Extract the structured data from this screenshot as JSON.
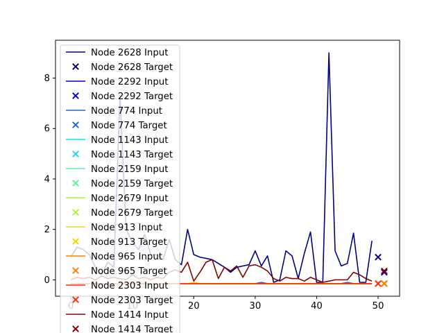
{
  "chart_data": {
    "type": "line",
    "title": "",
    "xlabel": "",
    "ylabel": "",
    "xlim": [
      -2.5,
      53.5
    ],
    "ylim": [
      -0.65,
      9.5
    ],
    "xticks": [
      0,
      10,
      20,
      30,
      40,
      50
    ],
    "yticks": [
      0,
      2,
      4,
      6,
      8
    ],
    "legend_position": "upper-left",
    "series": [
      {
        "name_input": "Node 2628 Input",
        "name_target": "Node 2628 Target",
        "color": "#000080",
        "values": [
          0.9,
          1.3,
          1.2,
          1.0,
          0.5,
          0.2,
          0.7,
          0.5,
          7.3,
          2.0,
          1.5,
          1.2,
          1.8,
          1.0,
          1.0,
          0.8,
          1.6,
          0.8,
          0.6,
          2.0,
          1.0,
          0.9,
          0.85,
          0.8,
          0.65,
          0.5,
          0.3,
          0.5,
          0.55,
          0.6,
          1.15,
          0.55,
          0.95,
          -0.1,
          0.0,
          1.15,
          0.95,
          0.05,
          1.05,
          1.9,
          -0.1,
          -0.1,
          9.0,
          1.15,
          0.55,
          0.65,
          1.85,
          -0.1,
          -0.1,
          1.55
        ],
        "target": [
          50,
          0.9
        ]
      },
      {
        "name_input": "Node 2292 Input",
        "name_target": "Node 2292 Target",
        "color": "#0000cd",
        "values": [
          -0.15,
          -0.15,
          -0.15,
          -0.15,
          -0.15,
          -0.15,
          -0.15,
          -0.15,
          -0.15,
          -0.15,
          -0.15,
          -0.15,
          -0.15,
          -0.15,
          -0.15,
          -0.15,
          -0.15,
          -0.15,
          -0.15,
          -0.15,
          -0.15,
          -0.15,
          -0.15,
          -0.15,
          -0.15,
          -0.15,
          -0.15,
          -0.15,
          -0.15,
          -0.15,
          -0.15,
          -0.15,
          -0.15,
          -0.15,
          -0.15,
          -0.15,
          -0.15,
          -0.15,
          -0.15,
          -0.15,
          -0.15,
          -0.15,
          -0.15,
          -0.15,
          -0.15,
          -0.15,
          -0.15,
          -0.15,
          -0.15,
          -0.15
        ],
        "target": [
          51,
          0.3
        ]
      },
      {
        "name_input": "Node 774 Input",
        "name_target": "Node 774 Target",
        "color": "#1a66e6",
        "values": [
          -0.15,
          -0.15,
          -0.15,
          -0.15,
          -0.15,
          -0.15,
          -0.15,
          -0.15,
          -0.15,
          -0.15,
          -0.15,
          -0.15,
          -0.15,
          -0.15,
          -0.15,
          -0.15,
          -0.15,
          -0.15,
          -0.15,
          -0.15,
          -0.15,
          -0.15,
          -0.15,
          -0.15,
          -0.15,
          -0.15,
          -0.15,
          -0.15,
          -0.15,
          -0.15,
          -0.15,
          -0.1,
          -0.15,
          -0.15,
          -0.15,
          -0.15,
          -0.15,
          -0.15,
          -0.15,
          -0.15,
          -0.15,
          -0.15,
          -0.15,
          -0.15,
          -0.15,
          -0.1,
          -0.15,
          -0.15,
          -0.15,
          -0.15
        ],
        "target": [
          51,
          -0.15
        ]
      },
      {
        "name_input": "Node 1143 Input",
        "name_target": "Node 1143 Target",
        "color": "#1ad6f0",
        "values": [
          -0.15,
          -0.15,
          -0.15,
          -0.15,
          -0.15,
          -0.15,
          -0.15,
          -0.15,
          -0.15,
          -0.15,
          -0.15,
          -0.15,
          -0.15,
          -0.15,
          -0.15,
          -0.15,
          -0.15,
          -0.15,
          -0.15,
          -0.15,
          -0.15,
          -0.15,
          -0.15,
          -0.15,
          -0.15,
          -0.15,
          -0.15,
          -0.15,
          -0.15,
          -0.15,
          -0.15,
          -0.15,
          -0.15,
          -0.15,
          -0.15,
          -0.15,
          -0.15,
          -0.15,
          -0.15,
          -0.15,
          -0.15,
          -0.15,
          -0.15,
          -0.15,
          -0.15,
          -0.15,
          -0.15,
          -0.15,
          -0.15,
          -0.15
        ],
        "target": [
          51,
          -0.15
        ]
      },
      {
        "name_input": "Node 2159 Input",
        "name_target": "Node 2159 Target",
        "color": "#5cf5a8",
        "values": [
          -0.15,
          -0.15,
          -0.15,
          -0.15,
          -0.15,
          -0.15,
          -0.15,
          -0.15,
          -0.15,
          -0.15,
          -0.15,
          -0.15,
          -0.15,
          -0.15,
          -0.15,
          -0.15,
          -0.15,
          -0.15,
          -0.15,
          -0.15,
          -0.15,
          -0.15,
          -0.15,
          -0.15,
          -0.15,
          -0.15,
          -0.15,
          -0.15,
          -0.15,
          -0.15,
          -0.15,
          -0.15,
          -0.15,
          -0.15,
          -0.15,
          -0.15,
          -0.15,
          -0.15,
          -0.15,
          -0.15,
          -0.15,
          -0.15,
          -0.15,
          -0.15,
          -0.15,
          -0.15,
          -0.15,
          -0.15,
          -0.15,
          -0.15
        ],
        "target": [
          51,
          -0.15
        ]
      },
      {
        "name_input": "Node 2679 Input",
        "name_target": "Node 2679 Target",
        "color": "#a8f53d",
        "values": [
          -0.15,
          -0.15,
          -0.15,
          -0.15,
          -0.15,
          -0.15,
          -0.15,
          -0.15,
          -0.15,
          -0.15,
          -0.15,
          -0.15,
          -0.15,
          -0.15,
          -0.15,
          -0.15,
          -0.15,
          -0.15,
          -0.15,
          -0.15,
          -0.15,
          -0.15,
          -0.15,
          -0.15,
          -0.15,
          -0.15,
          -0.15,
          -0.15,
          -0.15,
          -0.15,
          -0.15,
          -0.15,
          -0.15,
          -0.15,
          -0.15,
          -0.15,
          -0.15,
          -0.15,
          -0.15,
          -0.15,
          -0.15,
          -0.15,
          -0.15,
          -0.15,
          -0.15,
          -0.15,
          -0.15,
          -0.15,
          -0.15,
          -0.15
        ],
        "target": [
          51,
          -0.15
        ]
      },
      {
        "name_input": "Node 913 Input",
        "name_target": "Node 913 Target",
        "color": "#f5d800",
        "values": [
          -0.15,
          -0.15,
          -0.15,
          -0.15,
          -0.15,
          -0.15,
          -0.15,
          -0.15,
          -0.15,
          -0.15,
          -0.15,
          -0.15,
          -0.15,
          -0.15,
          -0.15,
          -0.15,
          -0.15,
          -0.15,
          -0.15,
          -0.15,
          -0.1,
          -0.15,
          -0.15,
          -0.15,
          -0.15,
          -0.15,
          -0.15,
          -0.15,
          -0.15,
          -0.15,
          -0.15,
          -0.15,
          -0.15,
          -0.15,
          -0.15,
          -0.15,
          -0.15,
          -0.15,
          -0.15,
          -0.15,
          -0.15,
          -0.15,
          -0.15,
          -0.15,
          -0.15,
          -0.15,
          -0.15,
          -0.15,
          -0.15,
          -0.15
        ],
        "target": [
          51,
          -0.15
        ]
      },
      {
        "name_input": "Node 965 Input",
        "name_target": "Node 965 Target",
        "color": "#ff8000",
        "values": [
          -0.15,
          -0.15,
          -0.15,
          -0.15,
          -0.15,
          -0.15,
          -0.15,
          -0.15,
          -0.15,
          -0.15,
          -0.15,
          -0.15,
          -0.15,
          -0.15,
          -0.15,
          -0.15,
          -0.15,
          -0.15,
          -0.15,
          -0.15,
          -0.15,
          -0.15,
          -0.15,
          -0.15,
          -0.15,
          -0.15,
          -0.15,
          -0.15,
          -0.15,
          -0.15,
          -0.15,
          -0.15,
          -0.15,
          -0.15,
          -0.15,
          -0.15,
          -0.15,
          -0.15,
          -0.15,
          -0.15,
          -0.15,
          -0.15,
          -0.15,
          -0.15,
          -0.15,
          -0.15,
          -0.15,
          -0.15,
          -0.15,
          -0.15
        ],
        "target": [
          51,
          -0.15
        ]
      },
      {
        "name_input": "Node 2303 Input",
        "name_target": "Node 2303 Target",
        "color": "#ff2a00",
        "values": [
          -0.15,
          -0.15,
          -0.15,
          -0.15,
          -0.15,
          -0.15,
          -0.15,
          -0.15,
          -0.15,
          -0.15,
          -0.15,
          -0.15,
          -0.15,
          -0.15,
          -0.15,
          -0.15,
          -0.15,
          -0.15,
          -0.15,
          -0.15,
          -0.15,
          -0.15,
          -0.15,
          -0.15,
          -0.15,
          -0.15,
          -0.15,
          -0.15,
          -0.15,
          -0.15,
          -0.15,
          -0.15,
          -0.15,
          -0.15,
          -0.15,
          -0.15,
          -0.15,
          -0.15,
          -0.15,
          -0.15,
          -0.15,
          -0.15,
          -0.15,
          -0.15,
          -0.15,
          -0.15,
          -0.15,
          -0.15,
          -0.15,
          -0.15
        ],
        "target": [
          50,
          -0.15
        ]
      },
      {
        "name_input": "Node 1414 Input",
        "name_target": "Node 1414 Target",
        "color": "#800000",
        "values": [
          0.0,
          0.1,
          0.05,
          0.1,
          0.0,
          0.15,
          0.05,
          0.1,
          0.05,
          0.0,
          0.2,
          0.05,
          0.1,
          0.0,
          0.1,
          0.05,
          0.3,
          0.4,
          0.3,
          0.7,
          -0.05,
          0.3,
          0.7,
          0.8,
          0.05,
          0.5,
          0.35,
          0.55,
          0.1,
          0.55,
          0.6,
          0.5,
          0.35,
          0.05,
          -0.05,
          0.1,
          0.05,
          0.05,
          -0.05,
          0.1,
          0.0,
          -0.1,
          -0.05,
          0.0,
          0.0,
          0.0,
          0.3,
          0.2,
          0.05,
          -0.05
        ],
        "target": [
          51,
          0.35
        ]
      }
    ]
  }
}
